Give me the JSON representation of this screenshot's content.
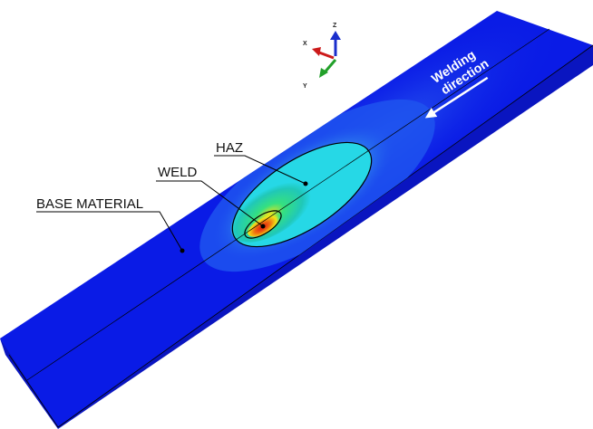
{
  "labels": {
    "weld": "WELD",
    "haz": "HAZ",
    "base_material": "BASE MATERIAL",
    "welding_direction_line1": "Welding",
    "welding_direction_line2": "direction"
  },
  "axes": {
    "x": "X",
    "y": "Y",
    "z": "Z"
  },
  "colors": {
    "plate_top": "#0a1be6",
    "plate_front": "#0a15c0",
    "plate_side": "#0814a8",
    "contour_cyan": "#26d8e6",
    "contour_green": "#35e080",
    "contour_yellow": "#f2e418",
    "contour_red": "#e01010",
    "axis_x": "#cc1a1a",
    "axis_y": "#22a02a",
    "axis_z": "#1a2ecc"
  }
}
